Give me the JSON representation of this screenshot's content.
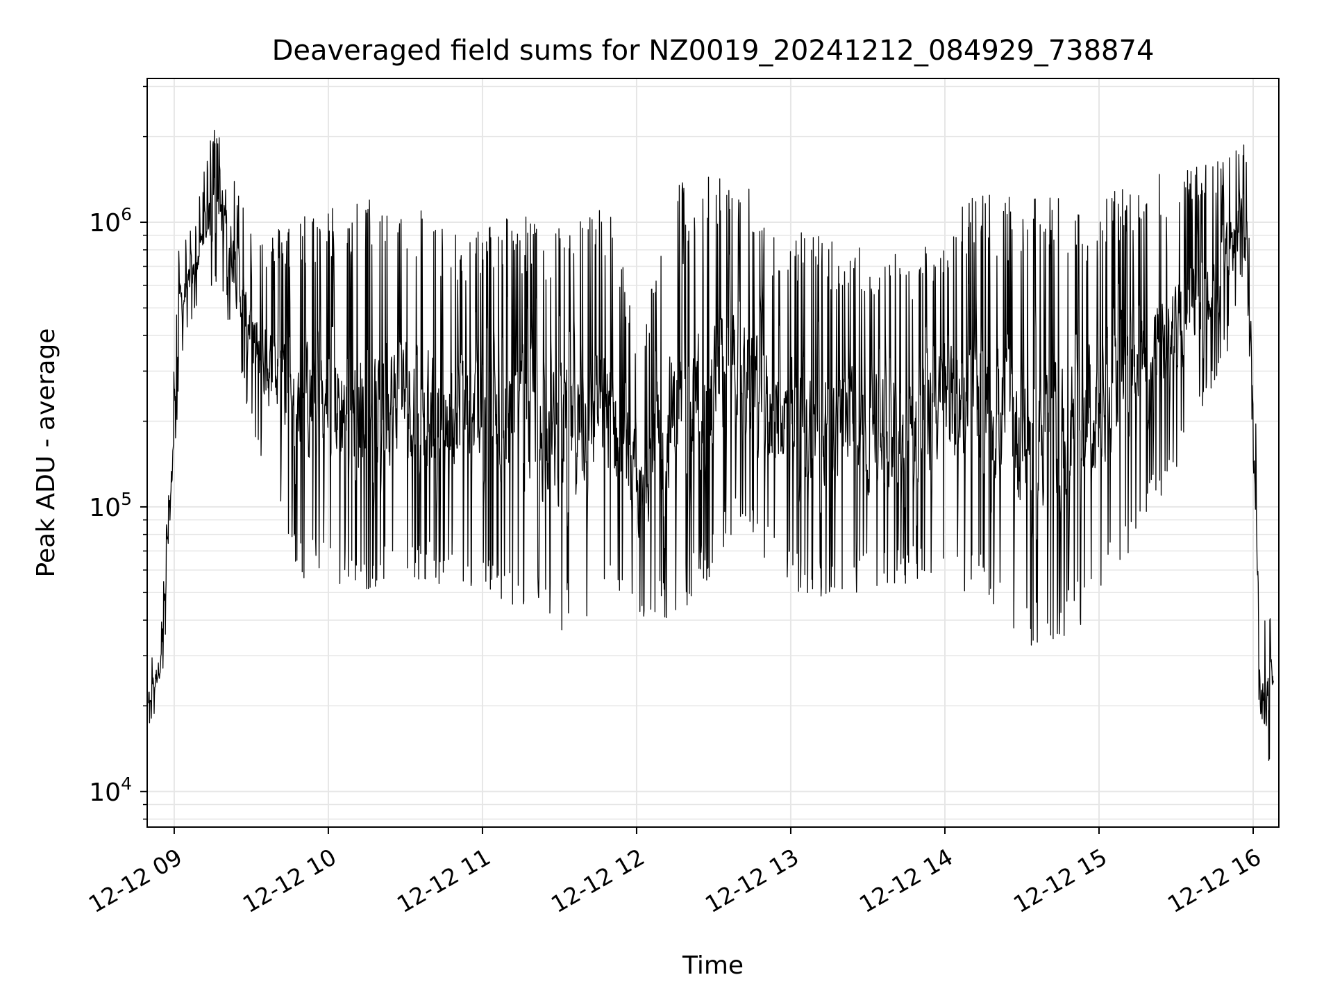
{
  "chart_data": {
    "type": "line",
    "title": "Deaveraged field sums for NZ0019_20241212_084929_738874",
    "xlabel": "Time",
    "ylabel": "Peak ADU - average",
    "yscale": "log",
    "ylim": [
      7500,
      3200000
    ],
    "xlim": [
      "2024-12-12 08:49:29",
      "2024-12-12 16:10:00"
    ],
    "grid": true,
    "legend": "none",
    "x_ticks": [
      {
        "t": "2024-12-12 09:00",
        "label": "12-12 09"
      },
      {
        "t": "2024-12-12 10:00",
        "label": "12-12 10"
      },
      {
        "t": "2024-12-12 11:00",
        "label": "12-12 11"
      },
      {
        "t": "2024-12-12 12:00",
        "label": "12-12 12"
      },
      {
        "t": "2024-12-12 13:00",
        "label": "12-12 13"
      },
      {
        "t": "2024-12-12 14:00",
        "label": "12-12 14"
      },
      {
        "t": "2024-12-12 15:00",
        "label": "12-12 15"
      },
      {
        "t": "2024-12-12 16:00",
        "label": "12-12 16"
      }
    ],
    "y_ticks": [
      {
        "value": 10000,
        "base": "10",
        "exp": "4"
      },
      {
        "value": 100000,
        "base": "10",
        "exp": "5"
      },
      {
        "value": 1000000,
        "base": "10",
        "exp": "6"
      }
    ],
    "line_color": "#000000",
    "grid_color": "#e6e6e6",
    "series": [
      {
        "envelope": {
          "note_units": "Peak ADU - average",
          "points": [
            {
              "t": "2024-12-12 08:50",
              "low": 16000,
              "high": 28000
            },
            {
              "t": "2024-12-12 08:55",
              "low": 22000,
              "high": 40000
            },
            {
              "t": "2024-12-12 08:58",
              "low": 50000,
              "high": 130000
            },
            {
              "t": "2024-12-12 09:02",
              "low": 300000,
              "high": 900000
            },
            {
              "t": "2024-12-12 09:08",
              "low": 500000,
              "high": 1000000
            },
            {
              "t": "2024-12-12 09:15",
              "low": 600000,
              "high": 2200000
            },
            {
              "t": "2024-12-12 09:20",
              "low": 500000,
              "high": 2500000
            },
            {
              "t": "2024-12-12 09:25",
              "low": 300000,
              "high": 1300000
            },
            {
              "t": "2024-12-12 09:35",
              "low": 120000,
              "high": 900000
            },
            {
              "t": "2024-12-12 09:50",
              "low": 55000,
              "high": 1100000
            },
            {
              "t": "2024-12-12 10:10",
              "low": 50000,
              "high": 1200000
            },
            {
              "t": "2024-12-12 10:30",
              "low": 55000,
              "high": 1300000
            },
            {
              "t": "2024-12-12 10:50",
              "low": 50000,
              "high": 900000
            },
            {
              "t": "2024-12-12 11:10",
              "low": 45000,
              "high": 1100000
            },
            {
              "t": "2024-12-12 11:30",
              "low": 35000,
              "high": 1000000
            },
            {
              "t": "2024-12-12 11:50",
              "low": 45000,
              "high": 1200000
            },
            {
              "t": "2024-12-12 12:00",
              "low": 35000,
              "high": 400000
            },
            {
              "t": "2024-12-12 12:15",
              "low": 40000,
              "high": 1400000
            },
            {
              "t": "2024-12-12 12:30",
              "low": 55000,
              "high": 1500000
            },
            {
              "t": "2024-12-12 12:40",
              "low": 90000,
              "high": 1500000
            },
            {
              "t": "2024-12-12 12:55",
              "low": 55000,
              "high": 900000
            },
            {
              "t": "2024-12-12 13:10",
              "low": 45000,
              "high": 950000
            },
            {
              "t": "2024-12-12 13:30",
              "low": 50000,
              "high": 800000
            },
            {
              "t": "2024-12-12 13:50",
              "low": 55000,
              "high": 800000
            },
            {
              "t": "2024-12-12 14:10",
              "low": 50000,
              "high": 1300000
            },
            {
              "t": "2024-12-12 14:30",
              "low": 32000,
              "high": 1200000
            },
            {
              "t": "2024-12-12 14:45",
              "low": 32000,
              "high": 1250000
            },
            {
              "t": "2024-12-12 15:00",
              "low": 45000,
              "high": 1200000
            },
            {
              "t": "2024-12-12 15:20",
              "low": 90000,
              "high": 1500000
            },
            {
              "t": "2024-12-12 15:40",
              "low": 200000,
              "high": 1600000
            },
            {
              "t": "2024-12-12 15:50",
              "low": 350000,
              "high": 1700000
            },
            {
              "t": "2024-12-12 15:57",
              "low": 700000,
              "high": 1900000
            },
            {
              "t": "2024-12-12 16:00",
              "low": 150000,
              "high": 500000
            },
            {
              "t": "2024-12-12 16:03",
              "low": 9500,
              "high": 40000
            },
            {
              "t": "2024-12-12 16:08",
              "low": 15000,
              "high": 42000
            }
          ]
        }
      }
    ]
  }
}
